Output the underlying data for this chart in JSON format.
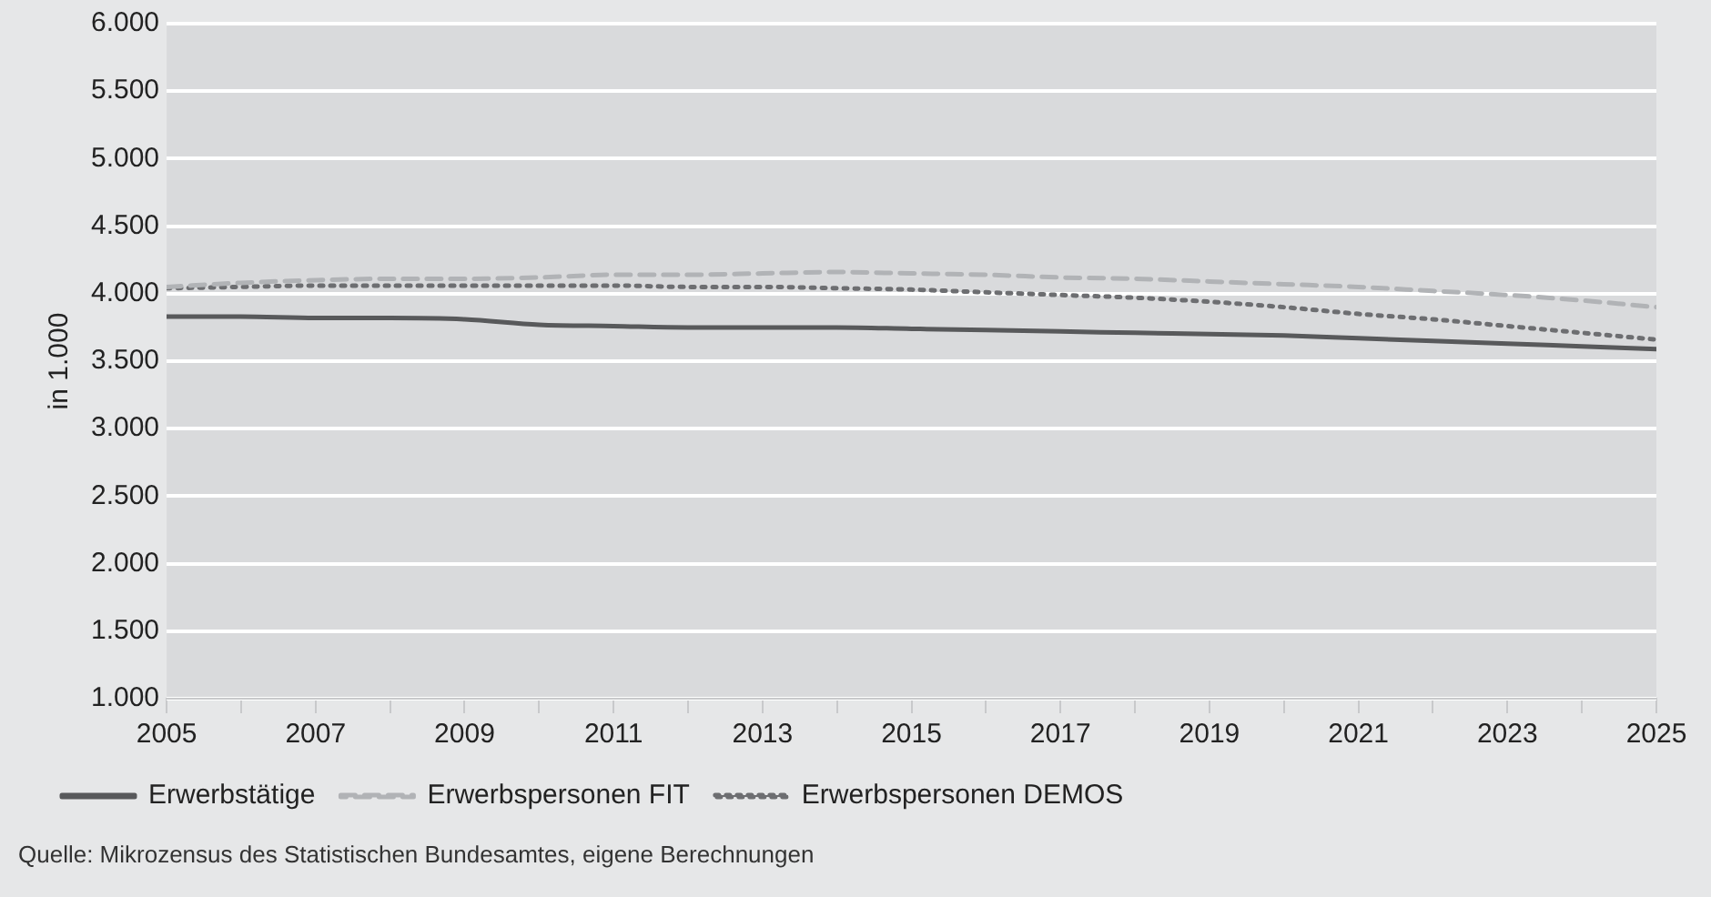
{
  "chart_data": {
    "type": "line",
    "ylabel": "in 1.000",
    "x": [
      2005,
      2006,
      2007,
      2008,
      2009,
      2010,
      2011,
      2012,
      2013,
      2014,
      2015,
      2016,
      2017,
      2018,
      2019,
      2020,
      2021,
      2022,
      2023,
      2024,
      2025
    ],
    "series": [
      {
        "name": "Erwerbstätige",
        "color": "#58595b",
        "line_style": "solid",
        "values": [
          3830,
          3830,
          3820,
          3820,
          3810,
          3770,
          3760,
          3750,
          3750,
          3750,
          3740,
          3730,
          3720,
          3710,
          3700,
          3690,
          3670,
          3650,
          3630,
          3610,
          3590
        ]
      },
      {
        "name": "Erwerbspersonen FIT",
        "color": "#b1b3b6",
        "line_style": "dashed",
        "values": [
          4050,
          4080,
          4100,
          4110,
          4110,
          4120,
          4140,
          4140,
          4150,
          4160,
          4150,
          4140,
          4120,
          4110,
          4090,
          4070,
          4050,
          4020,
          3990,
          3950,
          3900
        ]
      },
      {
        "name": "Erwerbspersonen DEMOS",
        "color": "#6d6e71",
        "line_style": "dotted",
        "values": [
          4040,
          4050,
          4060,
          4060,
          4060,
          4060,
          4060,
          4050,
          4050,
          4040,
          4030,
          4010,
          3990,
          3970,
          3940,
          3900,
          3850,
          3810,
          3760,
          3710,
          3660
        ]
      }
    ],
    "xlim": [
      2005,
      2025
    ],
    "xticks": [
      2005,
      {
        "value": 2006,
        "label": null
      },
      2007,
      {
        "value": 2008,
        "label": null
      },
      2009,
      {
        "value": 2010,
        "label": null
      },
      2011,
      {
        "value": 2012,
        "label": null
      },
      2013,
      {
        "value": 2014,
        "label": null
      },
      2015,
      {
        "value": 2016,
        "label": null
      },
      2017,
      {
        "value": 2018,
        "label": null
      },
      2019,
      {
        "value": 2020,
        "label": null
      },
      2021,
      {
        "value": 2022,
        "label": null
      },
      2023,
      {
        "value": 2024,
        "label": null
      },
      2025
    ],
    "ylim": [
      1000,
      6000
    ],
    "yticks": [
      {
        "value": 1000,
        "label": "1.000"
      },
      {
        "value": 1500,
        "label": "1.500"
      },
      {
        "value": 2000,
        "label": "2.000"
      },
      {
        "value": 2500,
        "label": "2.500"
      },
      {
        "value": 3000,
        "label": "3.000"
      },
      {
        "value": 3500,
        "label": "3.500"
      },
      {
        "value": 4000,
        "label": "4.000"
      },
      {
        "value": 4500,
        "label": "4.500"
      },
      {
        "value": 5000,
        "label": "5.000"
      },
      {
        "value": 5500,
        "label": "5.500"
      },
      {
        "value": 6000,
        "label": "6.000"
      }
    ],
    "grid": "y",
    "legend": "bottom",
    "marker": "none",
    "annotations": [
      "Quelle: Mikrozensus des Statistischen Bundesamtes, eigene Berechnungen"
    ]
  }
}
